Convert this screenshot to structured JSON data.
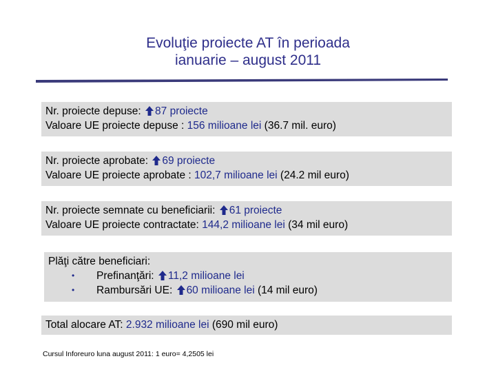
{
  "title": {
    "line1": "Evoluţie proiecte AT în perioada",
    "line2": "ianuarie – august 2011"
  },
  "colors": {
    "title": "#2e2e8a",
    "highlight": "#1f2a8c",
    "box": "#dcdcdc",
    "rule": "#3a3a7a"
  },
  "icons": {
    "increase": "up-arrow-icon",
    "bullet": "bullet-icon"
  },
  "box1": {
    "line1_label": "Nr. proiecte depuse: ",
    "line1_value": "87 proiecte",
    "line2_label": "Valoare UE proiecte depuse : ",
    "line2_value": "156 milioane lei",
    "line2_extra": " (36.7 mil. euro)"
  },
  "box2": {
    "line1_label": "Nr. proiecte aprobate: ",
    "line1_value": "69 proiecte",
    "line2_label": "Valoare UE proiecte aprobate : ",
    "line2_value": "102,7 milioane lei",
    "line2_extra": " (24.2 mil euro)"
  },
  "box3": {
    "line1_label": "Nr. proiecte semnate cu beneficiarii: ",
    "line1_value": "61 proiecte",
    "line2_label": "Valoare UE proiecte contractate: ",
    "line2_value": "144,2 milioane lei",
    "line2_extra": " (34 mil euro)"
  },
  "box4": {
    "heading": "Plăţi către beneficiari:",
    "bullet_char": "•",
    "items": [
      {
        "label": "Prefinanţări: ",
        "value": "11,2 milioane lei",
        "extra": ""
      },
      {
        "label": "Rambursări UE: ",
        "value": "60 milioane lei",
        "extra": " (14 mil euro)"
      }
    ]
  },
  "box5": {
    "label": "Total alocare AT: ",
    "value": "2.932 milioane lei",
    "extra": " (690 mil euro)"
  },
  "footnote": "Cursul Inforeuro luna august 2011: 1 euro= 4,2505 lei"
}
